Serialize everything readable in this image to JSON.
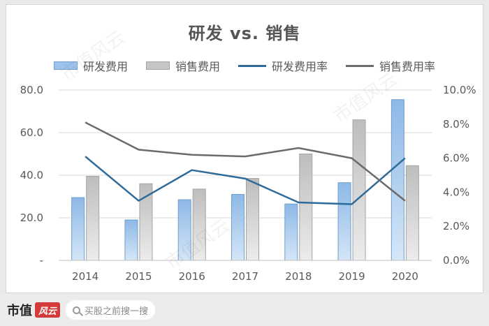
{
  "chart_data": {
    "type": "bar",
    "title": "研发 vs. 销售",
    "categories": [
      "2014",
      "2015",
      "2016",
      "2017",
      "2018",
      "2019",
      "2020"
    ],
    "series": [
      {
        "name": "研发费用",
        "kind": "bar",
        "axis": "left",
        "color": "#9ec3ea",
        "values": [
          29.5,
          19.0,
          28.5,
          31.0,
          26.5,
          36.5,
          75.5
        ]
      },
      {
        "name": "销售费用",
        "kind": "bar",
        "axis": "left",
        "color": "#c6c6c6",
        "values": [
          39.5,
          36.0,
          33.5,
          38.5,
          50.0,
          66.0,
          44.5
        ]
      },
      {
        "name": "研发费用率",
        "kind": "line",
        "axis": "right",
        "color": "#2e6b9a",
        "values": [
          6.1,
          3.5,
          5.3,
          4.8,
          3.4,
          3.3,
          6.0
        ]
      },
      {
        "name": "销售费用率",
        "kind": "line",
        "axis": "right",
        "color": "#6b6b6b",
        "values": [
          8.1,
          6.5,
          6.2,
          6.1,
          6.6,
          6.0,
          3.5
        ]
      }
    ],
    "ylim_left": [
      0,
      80
    ],
    "ylim_right": [
      0,
      10
    ],
    "yticks_left": [
      "-",
      "20.0",
      "40.0",
      "60.0",
      "80.0"
    ],
    "yticks_right": [
      "0.0%",
      "2.0%",
      "4.0%",
      "6.0%",
      "8.0%",
      "10.0%"
    ],
    "grid": true,
    "legend": "top"
  },
  "watermark_text": "市值风云",
  "footer": {
    "brand": "市值",
    "brand_logo": "风云",
    "search_placeholder": "买股之前搜一搜"
  }
}
